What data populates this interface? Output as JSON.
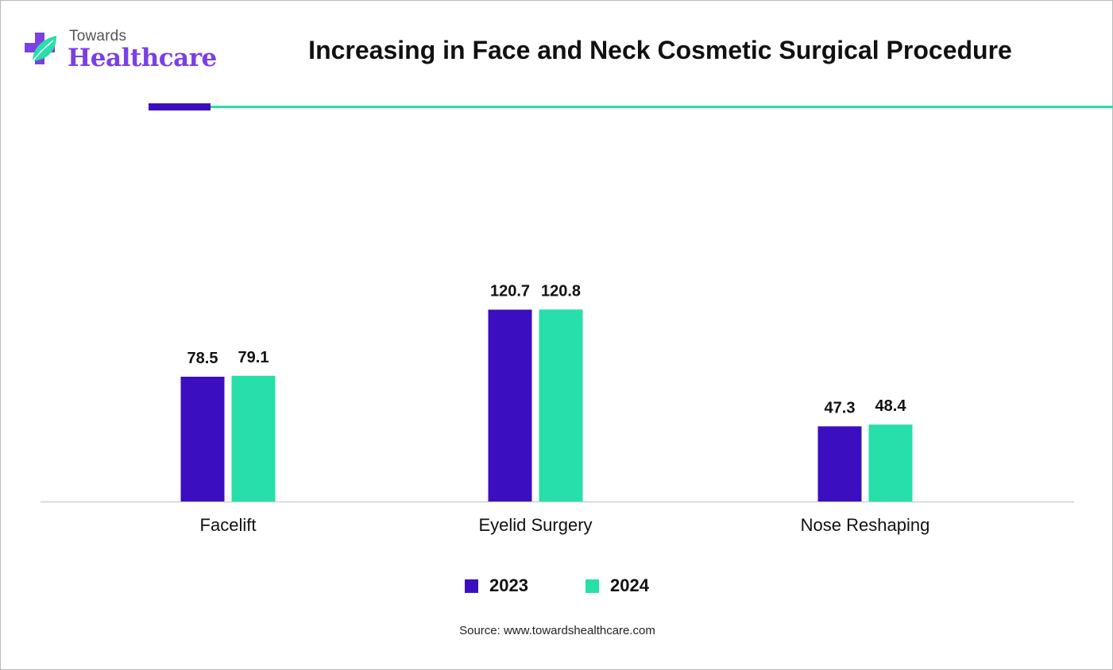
{
  "logo": {
    "top_text": "Towards",
    "main_text": "Healthcare",
    "color": "#7b3fe4",
    "leaf_color": "#26dfa9"
  },
  "chart_data": {
    "type": "bar",
    "title": "Increasing in Face and Neck Cosmetic Surgical Procedure",
    "categories": [
      "Facelift",
      "Eyelid Surgery",
      "Nose Reshaping"
    ],
    "series": [
      {
        "name": "2023",
        "values": [
          78.5,
          120.7,
          47.3
        ],
        "color": "#3b0fbf"
      },
      {
        "name": "2024",
        "values": [
          79.1,
          120.8,
          48.4
        ],
        "color": "#26dfa9"
      }
    ],
    "xlabel": "",
    "ylabel": "",
    "ylim": [
      0,
      140
    ],
    "grid": false,
    "legend_position": "bottom-center"
  },
  "source": "Source: www.towardshealthcare.com",
  "colors": {
    "accent_dark": "#3b0fbf",
    "accent_light": "#26dfa9"
  }
}
